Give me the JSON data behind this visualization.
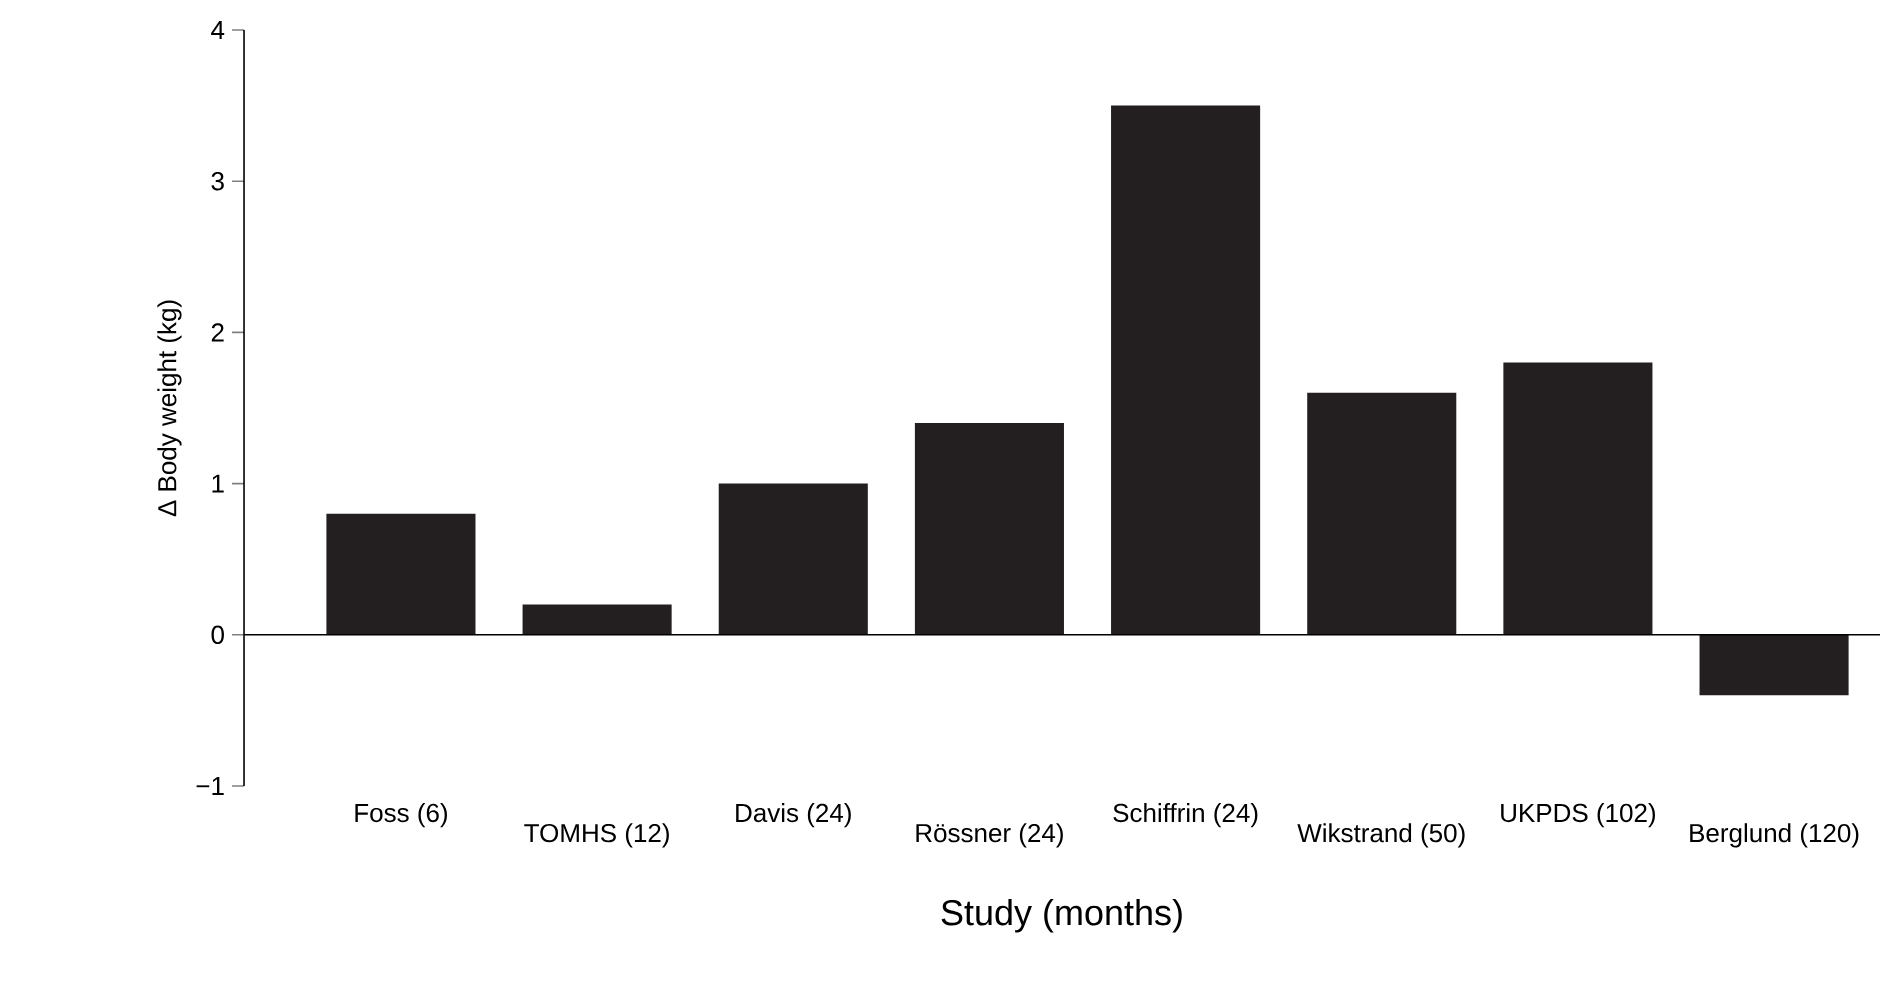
{
  "chart_data": {
    "type": "bar",
    "xlabel": "Study (months)",
    "ylabel": "Δ Body weight (kg)",
    "categories": [
      "Foss (6)",
      "TOMHS (12)",
      "Davis (24)",
      "Rössner (24)",
      "Schiffrin (24)",
      "Wikstrand (50)",
      "UKPDS (102)",
      "Berglund (120)"
    ],
    "values": [
      0.8,
      0.2,
      1.0,
      1.4,
      3.5,
      1.6,
      1.8,
      -0.4
    ],
    "color": "#231f20",
    "ylim": [
      -1,
      4
    ],
    "yticks": [
      {
        "value": -1,
        "label": "−1"
      },
      0,
      1,
      2,
      3,
      4
    ],
    "ref_lines": [
      {
        "axis": "y",
        "value": 0
      }
    ]
  }
}
